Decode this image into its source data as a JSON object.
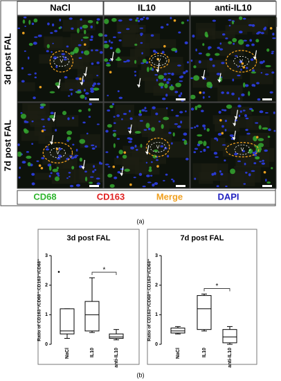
{
  "panel_a": {
    "column_headers": [
      "NaCl",
      "IL10",
      "anti-IL10"
    ],
    "row_labels": [
      "3d post FAL",
      "7d post FAL"
    ],
    "vessel_label": "V",
    "legend": [
      {
        "text": "CD68",
        "color": "#2fb52f"
      },
      {
        "text": "CD163",
        "color": "#e02020"
      },
      {
        "text": "Merge",
        "color": "#f0a020"
      },
      {
        "text": "DAPI",
        "color": "#2020c0"
      }
    ],
    "label": "(a)"
  },
  "panel_b": {
    "label": "(b)"
  },
  "chart_data": [
    {
      "type": "box",
      "title": "3d post FAL",
      "ylabel": "Ratio of CD163⁺/CD68⁺:CD163⁺/CD68⁺",
      "categories": [
        "NaCl",
        "IL10",
        "anti-IL10"
      ],
      "boxes": [
        {
          "min": 0.2,
          "q1": 0.35,
          "median": 0.45,
          "q3": 1.2,
          "max": 1.2,
          "outliers": [
            2.45
          ]
        },
        {
          "min": 0.4,
          "q1": 0.45,
          "median": 1.0,
          "q3": 1.45,
          "max": 2.25,
          "outliers": []
        },
        {
          "min": 0.15,
          "q1": 0.2,
          "median": 0.25,
          "q3": 0.35,
          "max": 0.5,
          "outliers": []
        }
      ],
      "annotation": "*",
      "ylim": [
        0,
        3
      ],
      "yticks": [
        0,
        1,
        2,
        3
      ]
    },
    {
      "type": "box",
      "title": "7d post FAL",
      "ylabel": "Ratio of CD163⁺/CD68⁺:CD163⁺/CD68⁺",
      "categories": [
        "NaCl",
        "IL10",
        "anti-IL10"
      ],
      "boxes": [
        {
          "min": 0.35,
          "q1": 0.38,
          "median": 0.45,
          "q3": 0.55,
          "max": 0.6,
          "outliers": []
        },
        {
          "min": 0.45,
          "q1": 0.5,
          "median": 1.2,
          "q3": 1.65,
          "max": 1.7,
          "outliers": []
        },
        {
          "min": 0.0,
          "q1": 0.05,
          "median": 0.25,
          "q3": 0.5,
          "max": 0.6,
          "outliers": []
        }
      ],
      "annotation": "*",
      "ylim": [
        0,
        3
      ],
      "yticks": [
        0,
        1,
        2,
        3
      ]
    }
  ]
}
